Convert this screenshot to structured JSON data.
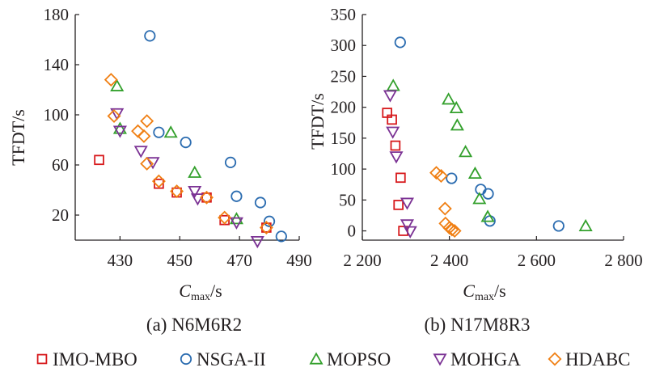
{
  "figure": {
    "legend": [
      {
        "name": "IMO-MBO",
        "marker": "square",
        "color": "#d7191c"
      },
      {
        "name": "NSGA-II",
        "marker": "circle",
        "color": "#2b6cb0"
      },
      {
        "name": "MOPSO",
        "marker": "triangle-up",
        "color": "#33a02c"
      },
      {
        "name": "MOHGA",
        "marker": "triangle-down",
        "color": "#7b3294"
      },
      {
        "name": "HDABC",
        "marker": "diamond",
        "color": "#f07f13"
      }
    ]
  },
  "chart_data": [
    {
      "type": "scatter",
      "caption": "(a) N6M6R2",
      "ylabel": "TFDT/s",
      "xlabel_main": "C",
      "xlabel_sub": "max",
      "xlabel_unit": "/s",
      "xlim": [
        415,
        490
      ],
      "ylim": [
        0,
        180
      ],
      "xticks": [
        430,
        450,
        470,
        490
      ],
      "xtick_labels": [
        "430",
        "450",
        "470",
        "490"
      ],
      "yticks": [
        20,
        60,
        100,
        140,
        180
      ],
      "ytick_labels": [
        "20",
        "60",
        "100",
        "140",
        "180"
      ],
      "series": [
        {
          "name": "IMO-MBO",
          "points": [
            [
              423,
              64
            ],
            [
              443,
              45
            ],
            [
              449,
              38
            ],
            [
              459,
              34
            ],
            [
              465,
              16
            ],
            [
              479,
              10
            ]
          ]
        },
        {
          "name": "NSGA-II",
          "points": [
            [
              440,
              163
            ],
            [
              443,
              86
            ],
            [
              452,
              78
            ],
            [
              467,
              62
            ],
            [
              469,
              35
            ],
            [
              477,
              30
            ],
            [
              480,
              15
            ],
            [
              484,
              3
            ]
          ]
        },
        {
          "name": "MOPSO",
          "points": [
            [
              429,
              123
            ],
            [
              430,
              89
            ],
            [
              447,
              86
            ],
            [
              455,
              54
            ],
            [
              469,
              17
            ]
          ]
        },
        {
          "name": "MOHGA",
          "points": [
            [
              429,
              101
            ],
            [
              430,
              87
            ],
            [
              437,
              71
            ],
            [
              441,
              62
            ],
            [
              455,
              39
            ],
            [
              456,
              33
            ],
            [
              469,
              14
            ],
            [
              476,
              -1
            ]
          ]
        },
        {
          "name": "HDABC",
          "points": [
            [
              427,
              128
            ],
            [
              428,
              99
            ],
            [
              439,
              95
            ],
            [
              436,
              87
            ],
            [
              438,
              83
            ],
            [
              439,
              61
            ],
            [
              443,
              47
            ],
            [
              449,
              39
            ],
            [
              459,
              34
            ],
            [
              465,
              18
            ],
            [
              479,
              10
            ]
          ]
        }
      ]
    },
    {
      "type": "scatter",
      "caption": "(b) N17M8R3",
      "ylabel": "TFDT/s",
      "xlabel_main": "C",
      "xlabel_sub": "max",
      "xlabel_unit": "/s",
      "xlim": [
        2200,
        2800
      ],
      "ylim": [
        -15,
        350
      ],
      "xticks": [
        2200,
        2400,
        2600,
        2800
      ],
      "xtick_labels": [
        "2 200",
        "2 400",
        "2 600",
        "2 800"
      ],
      "yticks": [
        0,
        50,
        100,
        150,
        200,
        250,
        300,
        350
      ],
      "ytick_labels": [
        "0",
        "50",
        "100",
        "150",
        "200",
        "250",
        "300",
        "350"
      ],
      "series": [
        {
          "name": "IMO-MBO",
          "points": [
            [
              2257,
              191
            ],
            [
              2268,
              180
            ],
            [
              2276,
              138
            ],
            [
              2288,
              86
            ],
            [
              2283,
              42
            ],
            [
              2294,
              0
            ]
          ]
        },
        {
          "name": "NSGA-II",
          "points": [
            [
              2287,
              305
            ],
            [
              2405,
              85
            ],
            [
              2472,
              67
            ],
            [
              2489,
              60
            ],
            [
              2493,
              16
            ],
            [
              2651,
              8
            ]
          ]
        },
        {
          "name": "MOPSO",
          "points": [
            [
              2271,
              235
            ],
            [
              2398,
              213
            ],
            [
              2416,
              199
            ],
            [
              2418,
              171
            ],
            [
              2437,
              128
            ],
            [
              2459,
              93
            ],
            [
              2469,
              52
            ],
            [
              2488,
              23
            ],
            [
              2713,
              8
            ]
          ]
        },
        {
          "name": "MOHGA",
          "points": [
            [
              2264,
              219
            ],
            [
              2270,
              160
            ],
            [
              2278,
              120
            ],
            [
              2303,
              45
            ],
            [
              2303,
              10
            ],
            [
              2310,
              -1
            ]
          ]
        },
        {
          "name": "HDABC",
          "points": [
            [
              2370,
              94
            ],
            [
              2381,
              89
            ],
            [
              2390,
              36
            ],
            [
              2391,
              12
            ],
            [
              2400,
              5
            ],
            [
              2406,
              2
            ],
            [
              2412,
              0
            ]
          ]
        }
      ]
    }
  ]
}
